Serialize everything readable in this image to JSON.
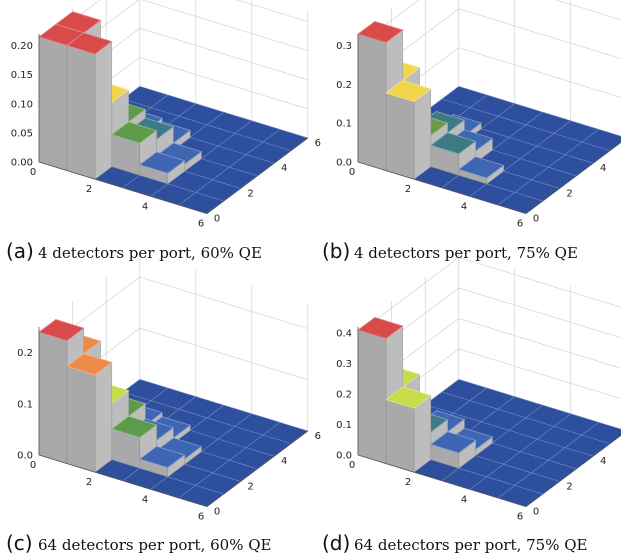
{
  "figure": {
    "axis_color": "#555555",
    "grid_color": "#cccccc",
    "floor_color": "#2e4f9e",
    "panels": [
      {
        "letter": "(a)",
        "caption": "4 detectors per port, 60% QE"
      },
      {
        "letter": "(b)",
        "caption": "4 detectors per port, 75% QE"
      },
      {
        "letter": "(c)",
        "caption": "64 detectors per port, 60% QE"
      },
      {
        "letter": "(d)",
        "caption": "64 detectors per port, 75% QE"
      }
    ]
  },
  "chart_data": [
    {
      "type": "bar3d",
      "x_ticks": [
        "0",
        "2",
        "4",
        "6"
      ],
      "y_ticks": [
        "0",
        "2",
        "4",
        "6"
      ],
      "z_ticks": [
        "0.00",
        "0.05",
        "0.10",
        "0.15",
        "0.20"
      ],
      "zlim": [
        0,
        0.22
      ],
      "cells": [
        {
          "i": 0,
          "j": 0,
          "z": 0.215,
          "color": "#d94a4a"
        },
        {
          "i": 0,
          "j": 1,
          "z": 0.215,
          "color": "#d94a4a"
        },
        {
          "i": 1,
          "j": 0,
          "z": 0.215,
          "color": "#d94a4a"
        },
        {
          "i": 1,
          "j": 1,
          "z": 0.11,
          "color": "#f2d54a"
        },
        {
          "i": 1,
          "j": 2,
          "z": 0.055,
          "color": "#5d9a4a"
        },
        {
          "i": 2,
          "j": 1,
          "z": 0.055,
          "color": "#5d9a4a"
        },
        {
          "i": 2,
          "j": 2,
          "z": 0.04,
          "color": "#3e7a86"
        },
        {
          "i": 1,
          "j": 3,
          "z": 0.018,
          "color": "#3e66b3"
        },
        {
          "i": 3,
          "j": 1,
          "z": 0.018,
          "color": "#3e66b3"
        },
        {
          "i": 2,
          "j": 3,
          "z": 0.012,
          "color": "#3e66b3"
        },
        {
          "i": 3,
          "j": 2,
          "z": 0.012,
          "color": "#3e66b3"
        }
      ]
    },
    {
      "type": "bar3d",
      "x_ticks": [
        "0",
        "2",
        "4",
        "6"
      ],
      "y_ticks": [
        "0",
        "2",
        "4",
        "6"
      ],
      "z_ticks": [
        "0.0",
        "0.1",
        "0.2",
        "0.3"
      ],
      "zlim": [
        0,
        0.33
      ],
      "cells": [
        {
          "i": 0,
          "j": 0,
          "z": 0.33,
          "color": "#d94a4a"
        },
        {
          "i": 0,
          "j": 1,
          "z": 0.2,
          "color": "#f2d54a"
        },
        {
          "i": 1,
          "j": 0,
          "z": 0.2,
          "color": "#f2d54a"
        },
        {
          "i": 1,
          "j": 1,
          "z": 0.08,
          "color": "#6a9a4a"
        },
        {
          "i": 1,
          "j": 2,
          "z": 0.055,
          "color": "#3e7a86"
        },
        {
          "i": 2,
          "j": 1,
          "z": 0.055,
          "color": "#3e7a86"
        },
        {
          "i": 2,
          "j": 2,
          "z": 0.03,
          "color": "#3e66b3"
        },
        {
          "i": 1,
          "j": 3,
          "z": 0.015,
          "color": "#3e66b3"
        },
        {
          "i": 3,
          "j": 1,
          "z": 0.015,
          "color": "#3e66b3"
        }
      ]
    },
    {
      "type": "bar3d",
      "x_ticks": [
        "0",
        "2",
        "4",
        "6"
      ],
      "y_ticks": [
        "0",
        "2",
        "4",
        "6"
      ],
      "z_ticks": [
        "0.0",
        "0.1",
        "0.2"
      ],
      "zlim": [
        0,
        0.25
      ],
      "cells": [
        {
          "i": 0,
          "j": 0,
          "z": 0.24,
          "color": "#d94a4a"
        },
        {
          "i": 0,
          "j": 1,
          "z": 0.19,
          "color": "#ee8a4a"
        },
        {
          "i": 1,
          "j": 0,
          "z": 0.19,
          "color": "#ee8a4a"
        },
        {
          "i": 1,
          "j": 1,
          "z": 0.11,
          "color": "#c8dc4a"
        },
        {
          "i": 1,
          "j": 2,
          "z": 0.06,
          "color": "#5d9a4a"
        },
        {
          "i": 2,
          "j": 1,
          "z": 0.06,
          "color": "#5d9a4a"
        },
        {
          "i": 2,
          "j": 2,
          "z": 0.03,
          "color": "#3e66b3"
        },
        {
          "i": 1,
          "j": 3,
          "z": 0.018,
          "color": "#3e66b3"
        },
        {
          "i": 3,
          "j": 1,
          "z": 0.018,
          "color": "#3e66b3"
        },
        {
          "i": 2,
          "j": 3,
          "z": 0.01,
          "color": "#3e66b3"
        },
        {
          "i": 3,
          "j": 2,
          "z": 0.01,
          "color": "#3e66b3"
        }
      ]
    },
    {
      "type": "bar3d",
      "x_ticks": [
        "0",
        "2",
        "4",
        "6"
      ],
      "y_ticks": [
        "0",
        "2",
        "4",
        "6"
      ],
      "z_ticks": [
        "0.0",
        "0.1",
        "0.2",
        "0.3",
        "0.4"
      ],
      "zlim": [
        0,
        0.42
      ],
      "cells": [
        {
          "i": 0,
          "j": 0,
          "z": 0.41,
          "color": "#d94a4a"
        },
        {
          "i": 0,
          "j": 1,
          "z": 0.21,
          "color": "#c8dc4a"
        },
        {
          "i": 1,
          "j": 0,
          "z": 0.21,
          "color": "#c8dc4a"
        },
        {
          "i": 1,
          "j": 1,
          "z": 0.09,
          "color": "#3e7a86"
        },
        {
          "i": 1,
          "j": 2,
          "z": 0.05,
          "color": "#3e66b3"
        },
        {
          "i": 2,
          "j": 1,
          "z": 0.05,
          "color": "#3e66b3"
        },
        {
          "i": 2,
          "j": 2,
          "z": 0.02,
          "color": "#3e66b3"
        }
      ]
    }
  ]
}
